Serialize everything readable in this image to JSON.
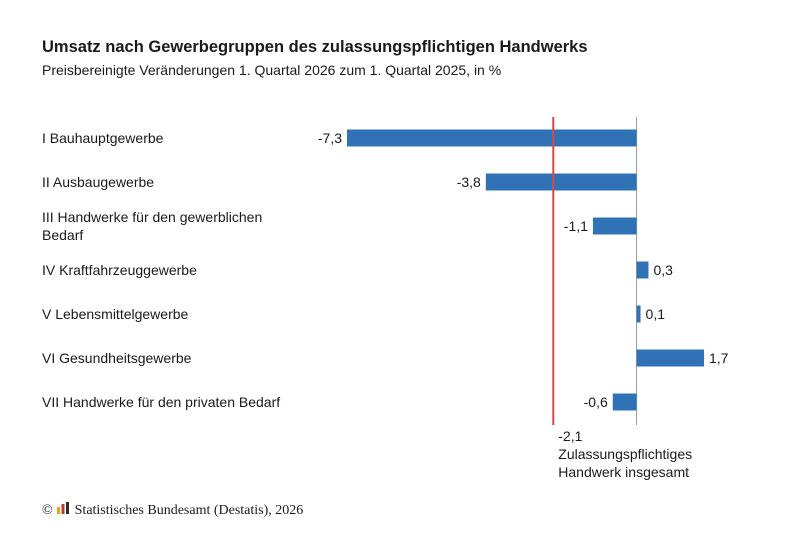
{
  "title": "Umsatz nach Gewerbegruppen des zulassungspflichtigen Handwerks",
  "subtitle": "Preisbereinigte Veränderungen 1. Quartal 2026 zum 1. Quartal 2025, in %",
  "footer": {
    "copyright_symbol": "©",
    "source": "Statistisches Bundesamt (Destatis), 2026",
    "logo_icon": "destatis-logo-icon"
  },
  "colors": {
    "bar": "#2f73b6",
    "reference_line": "#e0474c",
    "zero_line": "#9a9a9a",
    "logo": [
      "#e0a81c",
      "#c0392b",
      "#2c2c2c"
    ]
  },
  "chart_data": {
    "type": "bar",
    "orientation": "horizontal",
    "categories": [
      [
        "I Bauhauptgewerbe"
      ],
      [
        "II Ausbaugewerbe"
      ],
      [
        "III Handwerke für den gewerblichen",
        "Bedarf"
      ],
      [
        "IV Kraftfahrzeuggewerbe"
      ],
      [
        "V Lebensmittelgewerbe"
      ],
      [
        "VI Gesundheitsgewerbe"
      ],
      [
        "VII Handwerke für den privaten Bedarf"
      ]
    ],
    "values": [
      -7.3,
      -3.8,
      -1.1,
      0.3,
      0.1,
      1.7,
      -0.6
    ],
    "value_labels": [
      "-7,3",
      "-3,8",
      "-1,1",
      "0,3",
      "0,1",
      "1,7",
      "-0,6"
    ],
    "reference": {
      "value": -2.1,
      "value_label": "-2,1",
      "label": [
        "Zulassungspflichtiges",
        "Handwerk insgesamt"
      ]
    },
    "xlim": [
      -7.3,
      1.7
    ],
    "grid": false,
    "legend": "none"
  }
}
